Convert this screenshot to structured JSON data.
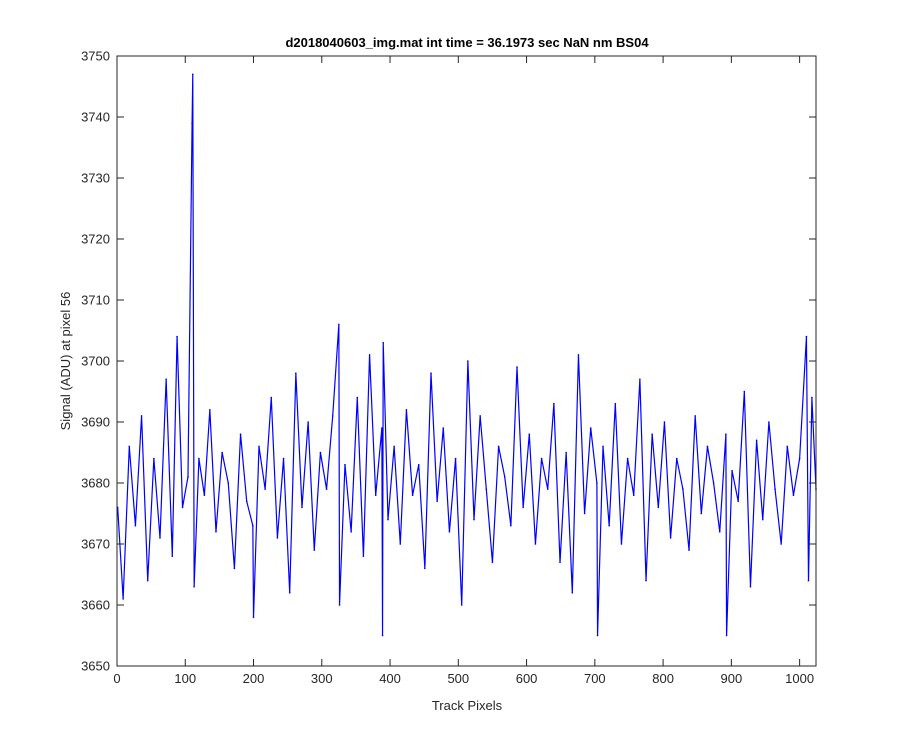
{
  "chart_data": {
    "type": "line",
    "title": "d2018040603_img.mat int time = 36.1973 sec  NaN nm BS04",
    "xlabel": "Track Pixels",
    "ylabel": "Signal (ADU) at pixel 56",
    "xlim": [
      0,
      1024
    ],
    "ylim": [
      3650,
      3750
    ],
    "xticks": [
      0,
      100,
      200,
      300,
      400,
      500,
      600,
      700,
      800,
      900,
      1000
    ],
    "yticks": [
      3650,
      3660,
      3670,
      3680,
      3690,
      3700,
      3710,
      3720,
      3730,
      3740,
      3750
    ],
    "grid": false,
    "legend": "none",
    "series": [
      {
        "color": "#0000ff",
        "x": [
          1,
          9,
          18,
          27,
          36,
          45,
          54,
          63,
          72,
          81,
          88,
          96,
          104,
          110,
          111,
          113,
          120,
          128,
          136,
          145,
          154,
          163,
          172,
          181,
          190,
          199,
          200,
          208,
          217,
          226,
          235,
          244,
          253,
          262,
          271,
          280,
          289,
          298,
          307,
          316,
          325,
          326,
          334,
          343,
          352,
          361,
          370,
          379,
          388,
          389,
          390,
          397,
          406,
          415,
          424,
          433,
          442,
          451,
          460,
          469,
          478,
          487,
          496,
          505,
          514,
          523,
          532,
          541,
          550,
          559,
          568,
          577,
          586,
          595,
          604,
          613,
          622,
          631,
          640,
          649,
          658,
          667,
          676,
          685,
          694,
          703,
          704,
          712,
          721,
          730,
          739,
          748,
          757,
          766,
          775,
          784,
          793,
          802,
          811,
          820,
          829,
          838,
          847,
          856,
          865,
          874,
          883,
          892,
          893,
          901,
          910,
          919,
          928,
          937,
          946,
          955,
          964,
          973,
          982,
          991,
          1000,
          1010,
          1013,
          1018,
          1024
        ],
        "values": [
          3676,
          3661,
          3686,
          3673,
          3691,
          3664,
          3684,
          3671,
          3697,
          3668,
          3704,
          3676,
          3681,
          3739,
          3747,
          3663,
          3684,
          3678,
          3692,
          3672,
          3685,
          3680,
          3666,
          3688,
          3677,
          3673,
          3658,
          3686,
          3679,
          3694,
          3671,
          3684,
          3662,
          3698,
          3676,
          3690,
          3669,
          3685,
          3679,
          3691,
          3706,
          3660,
          3683,
          3672,
          3694,
          3668,
          3701,
          3678,
          3689,
          3655,
          3703,
          3674,
          3686,
          3670,
          3692,
          3678,
          3683,
          3666,
          3698,
          3677,
          3689,
          3672,
          3684,
          3660,
          3700,
          3674,
          3691,
          3679,
          3667,
          3686,
          3681,
          3673,
          3699,
          3676,
          3688,
          3670,
          3684,
          3679,
          3693,
          3667,
          3685,
          3662,
          3701,
          3675,
          3689,
          3680,
          3655,
          3686,
          3673,
          3693,
          3670,
          3684,
          3678,
          3697,
          3664,
          3688,
          3676,
          3690,
          3671,
          3684,
          3679,
          3669,
          3691,
          3675,
          3686,
          3680,
          3672,
          3688,
          3655,
          3682,
          3677,
          3695,
          3663,
          3687,
          3674,
          3690,
          3679,
          3670,
          3686,
          3678,
          3684,
          3704,
          3664,
          3694,
          3679
        ]
      }
    ]
  }
}
